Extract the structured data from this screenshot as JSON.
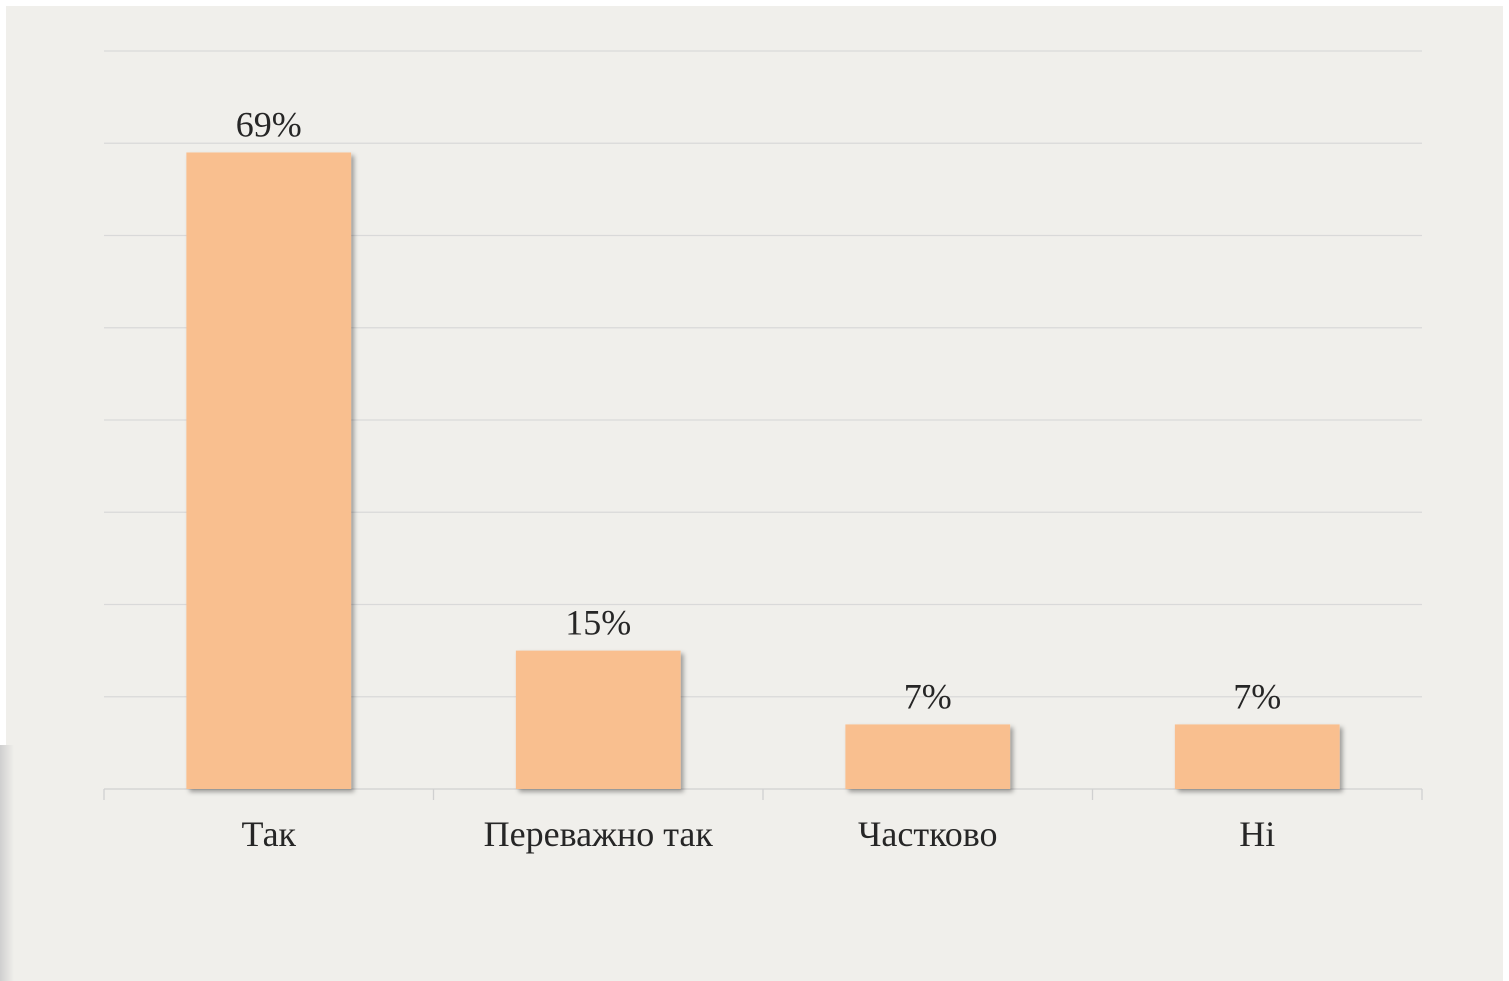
{
  "chart_data": {
    "type": "bar",
    "categories": [
      "Так",
      "Переважно так",
      "Частково",
      "Ні"
    ],
    "values": [
      69,
      15,
      7,
      7
    ],
    "data_labels": [
      "69%",
      "15%",
      "7%",
      "7%"
    ],
    "unit": "%",
    "ylim": [
      0,
      80
    ],
    "y_tick_step": 10,
    "y_axis_labels_shown": false,
    "grid": true,
    "legend": "none",
    "colors": {
      "bar": "#f9bf8f",
      "background": "#f0efeb",
      "grid": "#d9d9d9",
      "text": "#262626"
    }
  }
}
